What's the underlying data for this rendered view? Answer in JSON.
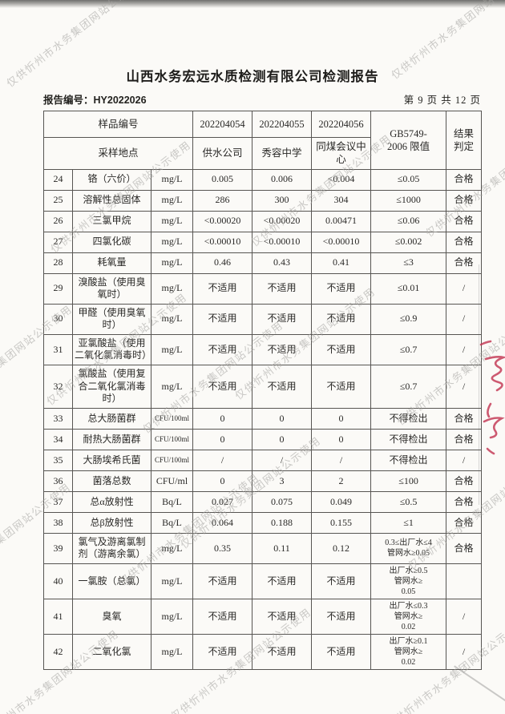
{
  "page": {
    "title": "山西水务宏远水质检测有限公司检测报告",
    "report_no": "报告编号：HY2022026",
    "page_indicator": "第 9 页 共 12 页"
  },
  "watermark": {
    "text": "仅供忻州市水务集团网站公示使用",
    "color": "#a6a5a2"
  },
  "stamp": {
    "color": "#c23350"
  },
  "table": {
    "header": {
      "sample_no_label": "样品编号",
      "location_label": "采样地点",
      "sample_ids": [
        "202204054",
        "202204055",
        "202204056"
      ],
      "locations": [
        "供水公司",
        "秀容中学",
        "同煤会议中心"
      ],
      "limit_label": "GB5749-\n2006 限值",
      "result_label": "结果\n判定"
    },
    "rows": [
      {
        "no": "24",
        "name": "铬（六价）",
        "unit": "mg/L",
        "v1": "0.005",
        "v2": "0.006",
        "v3": "<0.004",
        "limit": "≤0.05",
        "result": "合格"
      },
      {
        "no": "25",
        "name": "溶解性总固体",
        "unit": "mg/L",
        "v1": "286",
        "v2": "300",
        "v3": "304",
        "limit": "≤1000",
        "result": "合格"
      },
      {
        "no": "26",
        "name": "三氯甲烷",
        "unit": "mg/L",
        "v1": "<0.00020",
        "v2": "<0.00020",
        "v3": "0.00471",
        "limit": "≤0.06",
        "result": "合格"
      },
      {
        "no": "27",
        "name": "四氯化碳",
        "unit": "mg/L",
        "v1": "<0.00010",
        "v2": "<0.00010",
        "v3": "<0.00010",
        "limit": "≤0.002",
        "result": "合格"
      },
      {
        "no": "28",
        "name": "耗氧量",
        "unit": "mg/L",
        "v1": "0.46",
        "v2": "0.43",
        "v3": "0.41",
        "limit": "≤3",
        "result": "合格"
      },
      {
        "no": "29",
        "name": "溴酸盐（使用臭氧时）",
        "unit": "mg/L",
        "v1": "不适用",
        "v2": "不适用",
        "v3": "不适用",
        "limit": "≤0.01",
        "result": "/"
      },
      {
        "no": "30",
        "name": "甲醛（使用臭氧时）",
        "unit": "mg/L",
        "v1": "不适用",
        "v2": "不适用",
        "v3": "不适用",
        "limit": "≤0.9",
        "result": "/"
      },
      {
        "no": "31",
        "name": "亚氯酸盐（使用二氧化氯消毒时）",
        "unit": "mg/L",
        "v1": "不适用",
        "v2": "不适用",
        "v3": "不适用",
        "limit": "≤0.7",
        "result": "/"
      },
      {
        "no": "32",
        "name": "氯酸盐（使用复合二氧化氯消毒时）",
        "unit": "mg/L",
        "v1": "不适用",
        "v2": "不适用",
        "v3": "不适用",
        "limit": "≤0.7",
        "result": "/"
      },
      {
        "no": "33",
        "name": "总大肠菌群",
        "unit": "CFU/100ml",
        "v1": "0",
        "v2": "0",
        "v3": "0",
        "limit": "不得检出",
        "result": "合格"
      },
      {
        "no": "34",
        "name": "耐热大肠菌群",
        "unit": "CFU/100ml",
        "v1": "0",
        "v2": "0",
        "v3": "0",
        "limit": "不得检出",
        "result": "合格"
      },
      {
        "no": "35",
        "name": "大肠埃希氏菌",
        "unit": "CFU/100ml",
        "v1": "/",
        "v2": "/",
        "v3": "/",
        "limit": "不得检出",
        "result": "/"
      },
      {
        "no": "36",
        "name": "菌落总数",
        "unit": "CFU/ml",
        "v1": "0",
        "v2": "3",
        "v3": "2",
        "limit": "≤100",
        "result": "合格"
      },
      {
        "no": "37",
        "name": "总α放射性",
        "unit": "Bq/L",
        "v1": "0.027",
        "v2": "0.075",
        "v3": "0.049",
        "limit": "≤0.5",
        "result": "合格"
      },
      {
        "no": "38",
        "name": "总β放射性",
        "unit": "Bq/L",
        "v1": "0.064",
        "v2": "0.188",
        "v3": "0.155",
        "limit": "≤1",
        "result": "合格"
      },
      {
        "no": "39",
        "name": "氯气及游离氯制剂（游离余氯）",
        "unit": "mg/L",
        "v1": "0.35",
        "v2": "0.11",
        "v3": "0.12",
        "limit": "0.3≤出厂水≤4\n管网水≥0.05",
        "result": "合格"
      },
      {
        "no": "40",
        "name": "一氯胺（总氯）",
        "unit": "mg/L",
        "v1": "不适用",
        "v2": "不适用",
        "v3": "不适用",
        "limit": "出厂水≥0.5\n管网水≥\n0.05",
        "result": ""
      },
      {
        "no": "41",
        "name": "臭氧",
        "unit": "mg/L",
        "v1": "不适用",
        "v2": "不适用",
        "v3": "不适用",
        "limit": "出厂水≤0.3\n管网水≥\n0.02",
        "result": "/"
      },
      {
        "no": "42",
        "name": "二氧化氯",
        "unit": "mg/L",
        "v1": "不适用",
        "v2": "不适用",
        "v3": "不适用",
        "limit": "出厂水≥0.1\n管网水≥\n0.02",
        "result": "/"
      }
    ]
  }
}
